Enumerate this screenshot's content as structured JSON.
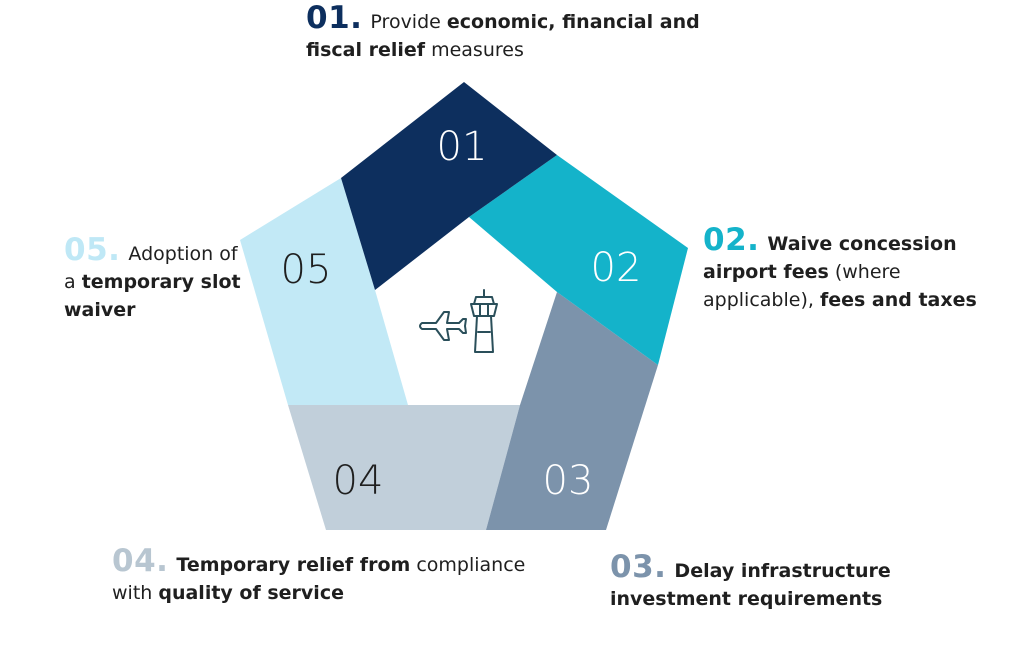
{
  "colors": {
    "segment_01": "#0d2f5e",
    "segment_02": "#14b3ca",
    "segment_03": "#7c93ab",
    "segment_04": "#c1cfda",
    "segment_05": "#c2e9f6",
    "icon": "#2a4f5a",
    "num_01": "#0d2f5e",
    "num_02": "#14b3ca",
    "num_03": "#7c93ab",
    "num_04": "#b8c6d1",
    "num_05": "#bfe8f6"
  },
  "segments": [
    {
      "label": "01"
    },
    {
      "label": "02"
    },
    {
      "label": "03"
    },
    {
      "label": "04"
    },
    {
      "label": "05"
    }
  ],
  "center_icon": "airplane-and-control-tower-icon",
  "callouts": {
    "c01": {
      "num": "01.",
      "t1": "Provide ",
      "b1": "economic, financial and fiscal relief",
      "t2": " measures"
    },
    "c02": {
      "num": "02.",
      "b1": "Waive concession airport fees",
      "t1": " (where applicable), ",
      "b2": "fees and taxes"
    },
    "c03": {
      "num": "03.",
      "b1": "Delay infrastructure investment requirements"
    },
    "c04": {
      "num": "04.",
      "b1": "Temporary relief from",
      "t1": " compliance with ",
      "b2": "quality of service"
    },
    "c05": {
      "num": "05.",
      "t1": "Adoption of  a ",
      "b1": "temporary slot waiver"
    }
  }
}
